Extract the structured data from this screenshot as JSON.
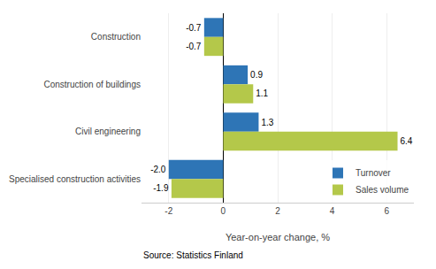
{
  "chart_data": {
    "type": "bar",
    "orientation": "horizontal",
    "categories": [
      "Construction",
      "Construction of buildings",
      "Civil engineering",
      "Specialised construction activities"
    ],
    "series": [
      {
        "name": "Turnover",
        "color": "#2E75B6",
        "values": [
          -0.7,
          0.9,
          1.3,
          -2.0
        ],
        "value_labels": [
          "-0.7",
          "0.9",
          "1.3",
          "-2.0"
        ]
      },
      {
        "name": "Sales volume",
        "color": "#B4C84A",
        "values": [
          -0.7,
          1.1,
          6.4,
          -1.9
        ],
        "value_labels": [
          "-0.7",
          "1.1",
          "6.4",
          "-1.9"
        ]
      }
    ],
    "xlabel": "Year-on-year change, %",
    "xlim": [
      -3,
      7
    ],
    "xticks": [
      -2,
      0,
      2,
      4,
      6
    ],
    "data_labels": true,
    "grid": true,
    "legend": "lower right",
    "annotations": [
      "Source: Statistics Finland"
    ]
  }
}
